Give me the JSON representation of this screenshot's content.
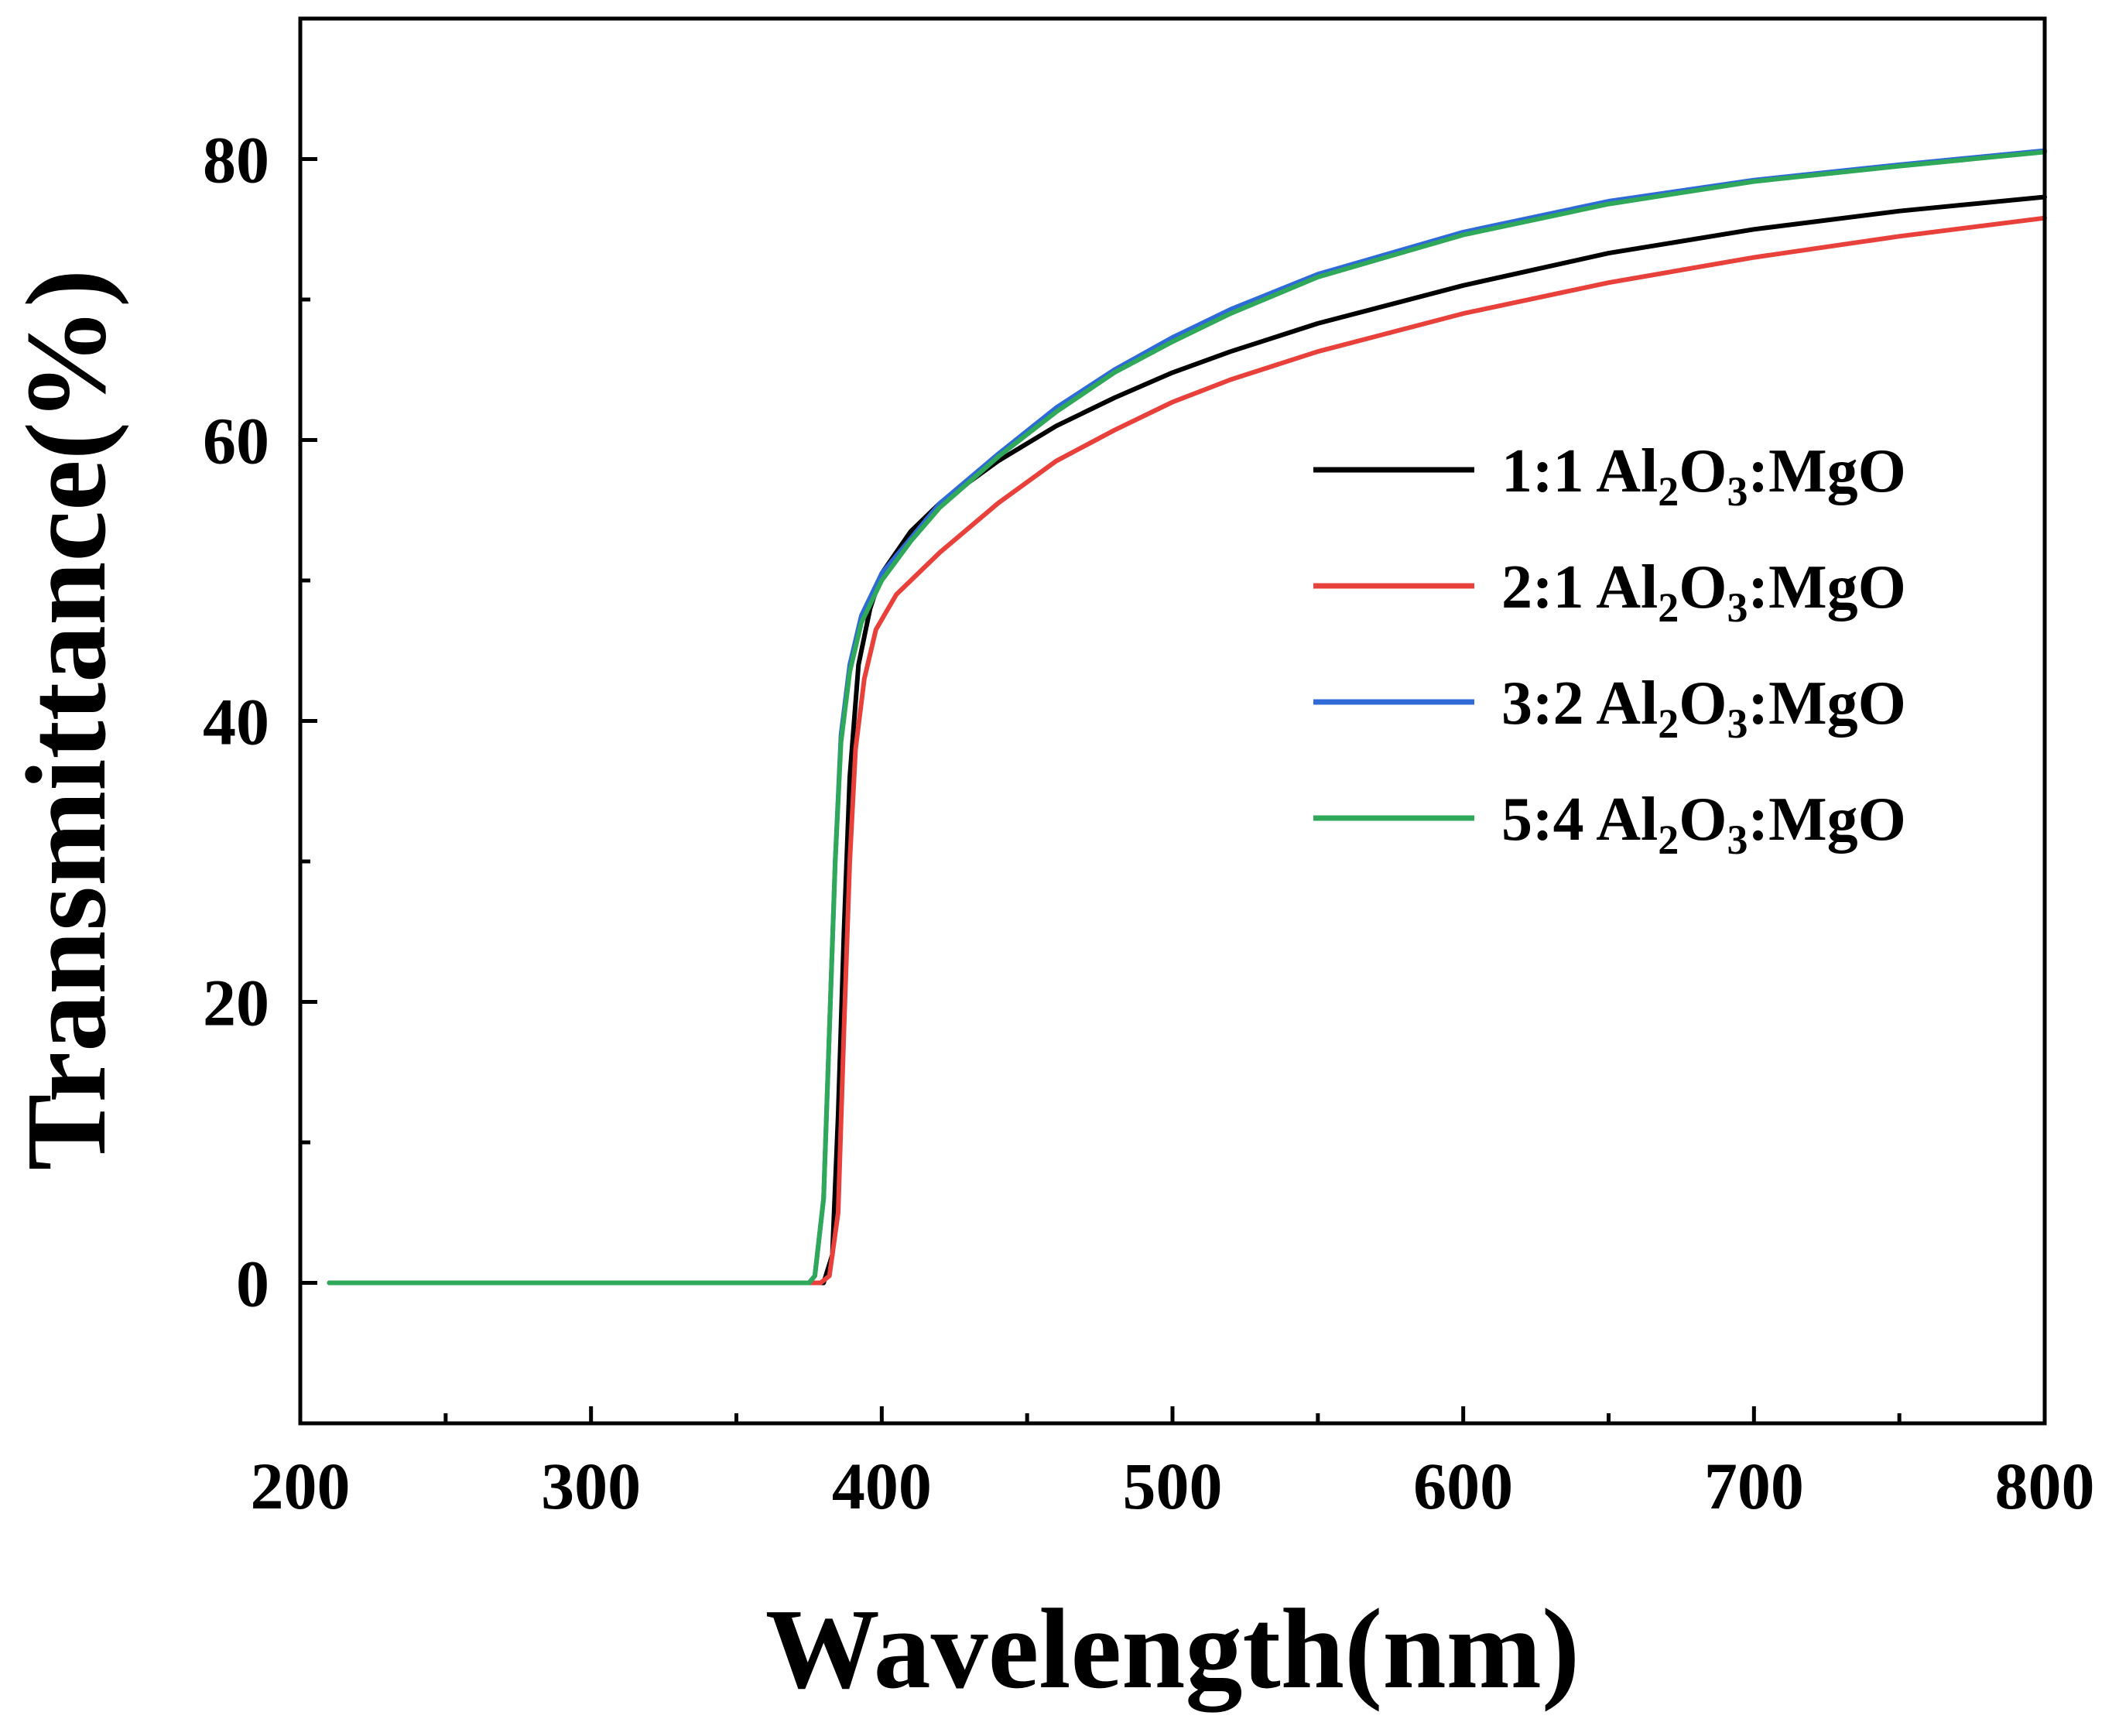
{
  "chart_data": {
    "type": "line",
    "title": "",
    "xlabel": "Wavelength(nm)",
    "ylabel": "Transmittance(%)",
    "xlim": [
      200,
      800
    ],
    "ylim": [
      -10,
      90
    ],
    "xticks": [
      200,
      300,
      400,
      500,
      600,
      700,
      800
    ],
    "yticks": [
      0,
      20,
      40,
      60,
      80
    ],
    "x_minor_step": 50,
    "y_minor_step": 10,
    "grid": false,
    "legend_position": "center-right",
    "series": [
      {
        "name": "1:1 Al2O3:MgO",
        "label_parts": [
          "1:1 Al",
          "2",
          "O",
          "3",
          ":MgO"
        ],
        "color": "#000000",
        "points": [
          [
            210,
            0
          ],
          [
            376,
            0
          ],
          [
            380,
            0
          ],
          [
            383,
            2
          ],
          [
            385,
            12
          ],
          [
            387,
            25
          ],
          [
            389,
            36
          ],
          [
            392,
            44
          ],
          [
            396,
            48
          ],
          [
            400,
            50.5
          ],
          [
            410,
            53.5
          ],
          [
            420,
            55.5
          ],
          [
            440,
            58.5
          ],
          [
            460,
            61
          ],
          [
            480,
            63
          ],
          [
            500,
            64.8
          ],
          [
            520,
            66.3
          ],
          [
            550,
            68.3
          ],
          [
            600,
            71
          ],
          [
            650,
            73.3
          ],
          [
            700,
            75
          ],
          [
            750,
            76.3
          ],
          [
            800,
            77.3
          ]
        ]
      },
      {
        "name": "2:1 Al2O3:MgO",
        "label_parts": [
          "2:1 Al",
          "2",
          "O",
          "3",
          ":MgO"
        ],
        "color": "#e8403a",
        "points": [
          [
            210,
            0
          ],
          [
            379,
            0
          ],
          [
            382,
            0.5
          ],
          [
            385,
            5
          ],
          [
            387,
            18
          ],
          [
            389,
            30
          ],
          [
            391,
            38
          ],
          [
            394,
            43
          ],
          [
            398,
            46.5
          ],
          [
            405,
            49
          ],
          [
            420,
            52
          ],
          [
            440,
            55.5
          ],
          [
            460,
            58.5
          ],
          [
            480,
            60.7
          ],
          [
            500,
            62.7
          ],
          [
            520,
            64.3
          ],
          [
            550,
            66.3
          ],
          [
            600,
            69
          ],
          [
            650,
            71.2
          ],
          [
            700,
            73
          ],
          [
            750,
            74.5
          ],
          [
            800,
            75.8
          ]
        ]
      },
      {
        "name": "3:2 Al2O3:MgO",
        "label_parts": [
          "3:2 Al",
          "2",
          "O",
          "3",
          ":MgO"
        ],
        "color": "#2f6bd6",
        "points": [
          [
            210,
            0
          ],
          [
            375,
            0
          ],
          [
            377,
            0.5
          ],
          [
            380,
            6
          ],
          [
            382,
            18
          ],
          [
            384,
            30
          ],
          [
            386,
            39
          ],
          [
            389,
            44
          ],
          [
            393,
            47.5
          ],
          [
            400,
            50.5
          ],
          [
            410,
            53
          ],
          [
            420,
            55.5
          ],
          [
            440,
            59
          ],
          [
            460,
            62.3
          ],
          [
            480,
            65
          ],
          [
            500,
            67.3
          ],
          [
            520,
            69.3
          ],
          [
            550,
            71.8
          ],
          [
            600,
            74.8
          ],
          [
            650,
            77
          ],
          [
            700,
            78.5
          ],
          [
            750,
            79.6
          ],
          [
            800,
            80.6
          ]
        ]
      },
      {
        "name": "5:4 Al2O3:MgO",
        "label_parts": [
          "5:4 Al",
          "2",
          "O",
          "3",
          ":MgO"
        ],
        "color": "#2fa85a",
        "points": [
          [
            210,
            0
          ],
          [
            375,
            0
          ],
          [
            377,
            0.5
          ],
          [
            380,
            6
          ],
          [
            382,
            18
          ],
          [
            384,
            30
          ],
          [
            386,
            38.5
          ],
          [
            389,
            43.5
          ],
          [
            393,
            47
          ],
          [
            400,
            50
          ],
          [
            410,
            52.8
          ],
          [
            420,
            55.2
          ],
          [
            440,
            58.8
          ],
          [
            460,
            62
          ],
          [
            480,
            64.8
          ],
          [
            500,
            67
          ],
          [
            520,
            69
          ],
          [
            550,
            71.6
          ],
          [
            600,
            74.6
          ],
          [
            650,
            76.8
          ],
          [
            700,
            78.4
          ],
          [
            750,
            79.5
          ],
          [
            800,
            80.5
          ]
        ]
      }
    ]
  }
}
